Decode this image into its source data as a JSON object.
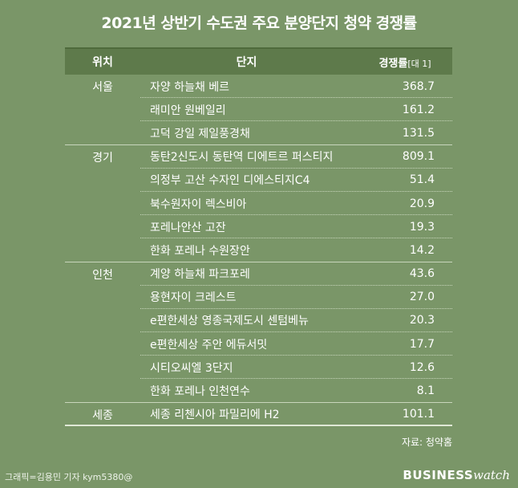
{
  "title": "2021년 상반기 수도권 주요 분양단지 청약 경쟁률",
  "header": {
    "region": "위치",
    "name": "단지",
    "rate": "경쟁률",
    "unit": "[대 1]"
  },
  "rows": [
    {
      "region": "서울",
      "name": "자양 하늘채 베르",
      "value": "368.7"
    },
    {
      "region": "",
      "name": "래미안 원베일리",
      "value": "161.2"
    },
    {
      "region": "",
      "name": "고덕 강일 제일풍경채",
      "value": "131.5"
    },
    {
      "region": "경기",
      "name": "동탄2신도시 동탄역 디에트르 퍼스티지",
      "value": "809.1"
    },
    {
      "region": "",
      "name": "의정부 고산 수자인 디에스티지C4",
      "value": "51.4"
    },
    {
      "region": "",
      "name": "북수원자이 렉스비아",
      "value": "20.9"
    },
    {
      "region": "",
      "name": "포레나안산 고잔",
      "value": "19.3"
    },
    {
      "region": "",
      "name": "한화 포레나 수원장안",
      "value": "14.2"
    },
    {
      "region": "인천",
      "name": "계양 하늘채 파크포레",
      "value": "43.6"
    },
    {
      "region": "",
      "name": "용현자이 크레스트",
      "value": "27.0"
    },
    {
      "region": "",
      "name": "e편한세상 영종국제도시 센텀베뉴",
      "value": "20.3"
    },
    {
      "region": "",
      "name": "e편한세상 주안 에듀서밋",
      "value": "17.7"
    },
    {
      "region": "",
      "name": "시티오씨엘 3단지",
      "value": "12.6"
    },
    {
      "region": "",
      "name": "한화 포레나 인천연수",
      "value": "8.1"
    },
    {
      "region": "세종",
      "name": "세종 리첸시아 파밀리에 H2",
      "value": "101.1"
    }
  ],
  "source": "자료: 청약홈",
  "credit": "그래픽=김용민 기자 kym5380@",
  "logo": {
    "bold": "BUSINESS",
    "script": "watch"
  },
  "colors": {
    "background": "#7a9668",
    "header": "#5e7a4b",
    "text": "#ffffff"
  }
}
